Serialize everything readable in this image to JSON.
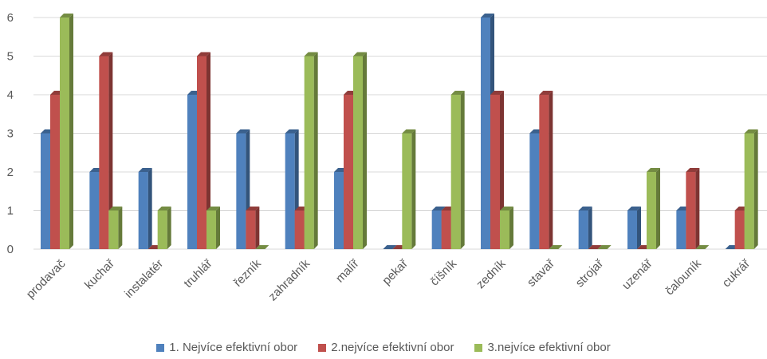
{
  "chart_data": {
    "type": "bar",
    "categories": [
      "prodavač",
      "kuchař",
      "instalatér",
      "truhlář",
      "řezník",
      "zahradník",
      "malíř",
      "pekař",
      "číšník",
      "zedník",
      "stavař",
      "strojař",
      "uzenář",
      "čalouník",
      "cukrář"
    ],
    "series": [
      {
        "name": "1. Nejvíce efektivní obor",
        "color": "#4F81BD",
        "values": [
          3,
          2,
          2,
          4,
          3,
          3,
          2,
          0,
          1,
          6,
          3,
          1,
          1,
          1,
          0
        ]
      },
      {
        "name": "2.nejvíce efektivní obor",
        "color": "#C0504D",
        "values": [
          4,
          5,
          0,
          5,
          1,
          1,
          4,
          0,
          1,
          4,
          4,
          0,
          0,
          2,
          1
        ]
      },
      {
        "name": "3.nejvíce efektivní obor",
        "color": "#9BBB59",
        "values": [
          6,
          1,
          1,
          1,
          0,
          5,
          5,
          3,
          4,
          1,
          0,
          0,
          2,
          0,
          3
        ]
      }
    ],
    "yticks": [
      "0",
      "1",
      "2",
      "3",
      "4",
      "5",
      "6"
    ],
    "ylim": [
      0,
      6
    ],
    "grid": true,
    "legend_position": "bottom",
    "xlabel": "",
    "ylabel": ""
  }
}
